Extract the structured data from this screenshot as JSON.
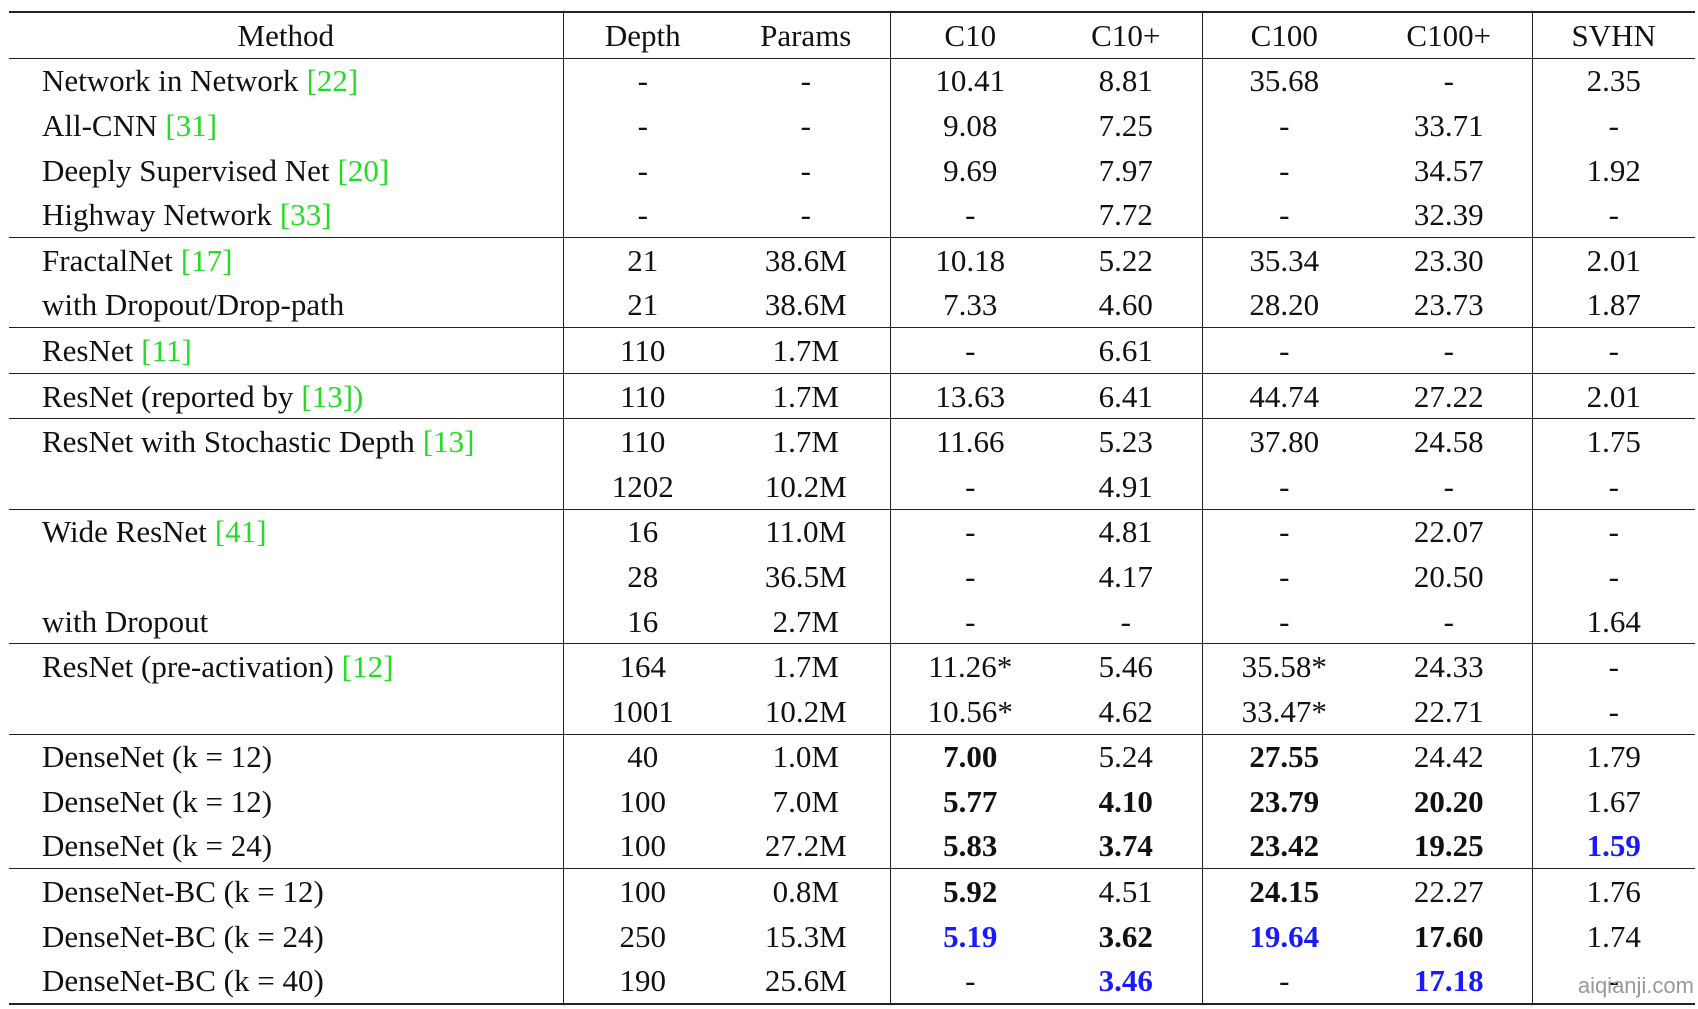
{
  "table": {
    "header": [
      "Method",
      "Depth",
      "Params",
      "C10",
      "C10+",
      "C100",
      "C100+",
      "SVHN"
    ],
    "groups": [
      {
        "rows": [
          {
            "method": "Network in Network",
            "ref": "[22]",
            "cells": [
              "-",
              "-",
              "10.41",
              "8.81",
              "35.68",
              "-",
              "2.35"
            ]
          },
          {
            "method": "All-CNN",
            "ref": "[31]",
            "cells": [
              "-",
              "-",
              "9.08",
              "7.25",
              "-",
              "33.71",
              "-"
            ]
          },
          {
            "method": "Deeply Supervised Net",
            "ref": "[20]",
            "cells": [
              "-",
              "-",
              "9.69",
              "7.97",
              "-",
              "34.57",
              "1.92"
            ]
          },
          {
            "method": "Highway Network",
            "ref": "[33]",
            "cells": [
              "-",
              "-",
              "-",
              "7.72",
              "-",
              "32.39",
              "-"
            ]
          }
        ]
      },
      {
        "rows": [
          {
            "method": "FractalNet",
            "ref": "[17]",
            "cells": [
              "21",
              "38.6M",
              "10.18",
              "5.22",
              "35.34",
              "23.30",
              "2.01"
            ]
          },
          {
            "method": "with Dropout/Drop-path",
            "cells": [
              "21",
              "38.6M",
              "7.33",
              "4.60",
              "28.20",
              "23.73",
              "1.87"
            ]
          }
        ]
      },
      {
        "rows": [
          {
            "method": "ResNet",
            "ref": "[11]",
            "cells": [
              "110",
              "1.7M",
              "-",
              "6.61",
              "-",
              "-",
              "-"
            ]
          }
        ]
      },
      {
        "rows": [
          {
            "method": "ResNet (reported by",
            "ref": "[13])",
            "cells": [
              "110",
              "1.7M",
              "13.63",
              "6.41",
              "44.74",
              "27.22",
              "2.01"
            ]
          }
        ]
      },
      {
        "rows": [
          {
            "method": "ResNet with Stochastic Depth",
            "ref": "[13]",
            "cells": [
              "110",
              "1.7M",
              "11.66",
              "5.23",
              "37.80",
              "24.58",
              "1.75"
            ]
          },
          {
            "method": null,
            "cells": [
              "1202",
              "10.2M",
              "-",
              "4.91",
              "-",
              "-",
              "-"
            ]
          }
        ]
      },
      {
        "rows": [
          {
            "method": "Wide ResNet",
            "ref": "[41]",
            "cells": [
              "16",
              "11.0M",
              "-",
              "4.81",
              "-",
              "22.07",
              "-"
            ]
          },
          {
            "method": null,
            "cells": [
              "28",
              "36.5M",
              "-",
              "4.17",
              "-",
              "20.50",
              "-"
            ]
          },
          {
            "method": "with Dropout",
            "cells": [
              "16",
              "2.7M",
              "-",
              "-",
              "-",
              "-",
              "1.64"
            ]
          }
        ]
      },
      {
        "rows": [
          {
            "method": "ResNet (pre-activation)",
            "ref": "[12]",
            "cells": [
              "164",
              "1.7M",
              "11.26*",
              "5.46",
              "35.58*",
              "24.33",
              "-"
            ]
          },
          {
            "method": null,
            "cells": [
              "1001",
              "10.2M",
              "10.56*",
              "4.62",
              "33.47*",
              "22.71",
              "-"
            ]
          }
        ]
      },
      {
        "rows": [
          {
            "method": "DenseNet (k = 12)",
            "cells": [
              "40",
              "1.0M",
              "7.00",
              "5.24",
              "27.55",
              "24.42",
              "1.79"
            ]
          },
          {
            "method": "DenseNet (k = 12)",
            "cells": [
              "100",
              "7.0M",
              "5.77",
              "4.10",
              "23.79",
              "20.20",
              "1.67"
            ]
          },
          {
            "method": "DenseNet (k = 24)",
            "cells": [
              "100",
              "27.2M",
              "5.83",
              "3.74",
              "23.42",
              "19.25",
              "1.59"
            ]
          }
        ]
      },
      {
        "rows": [
          {
            "method": "DenseNet-BC (k = 12)",
            "cells": [
              "100",
              "0.8M",
              "5.92",
              "4.51",
              "24.15",
              "22.27",
              "1.76"
            ]
          },
          {
            "method": "DenseNet-BC (k = 24)",
            "cells": [
              "250",
              "15.3M",
              "5.19",
              "3.62",
              "19.64",
              "17.60",
              "1.74"
            ]
          },
          {
            "method": "DenseNet-BC (k = 40)",
            "cells": [
              "190",
              "25.6M",
              "-",
              "3.46",
              "-",
              "17.18",
              "-"
            ]
          }
        ]
      }
    ]
  },
  "watermark": "aiqianji.com"
}
